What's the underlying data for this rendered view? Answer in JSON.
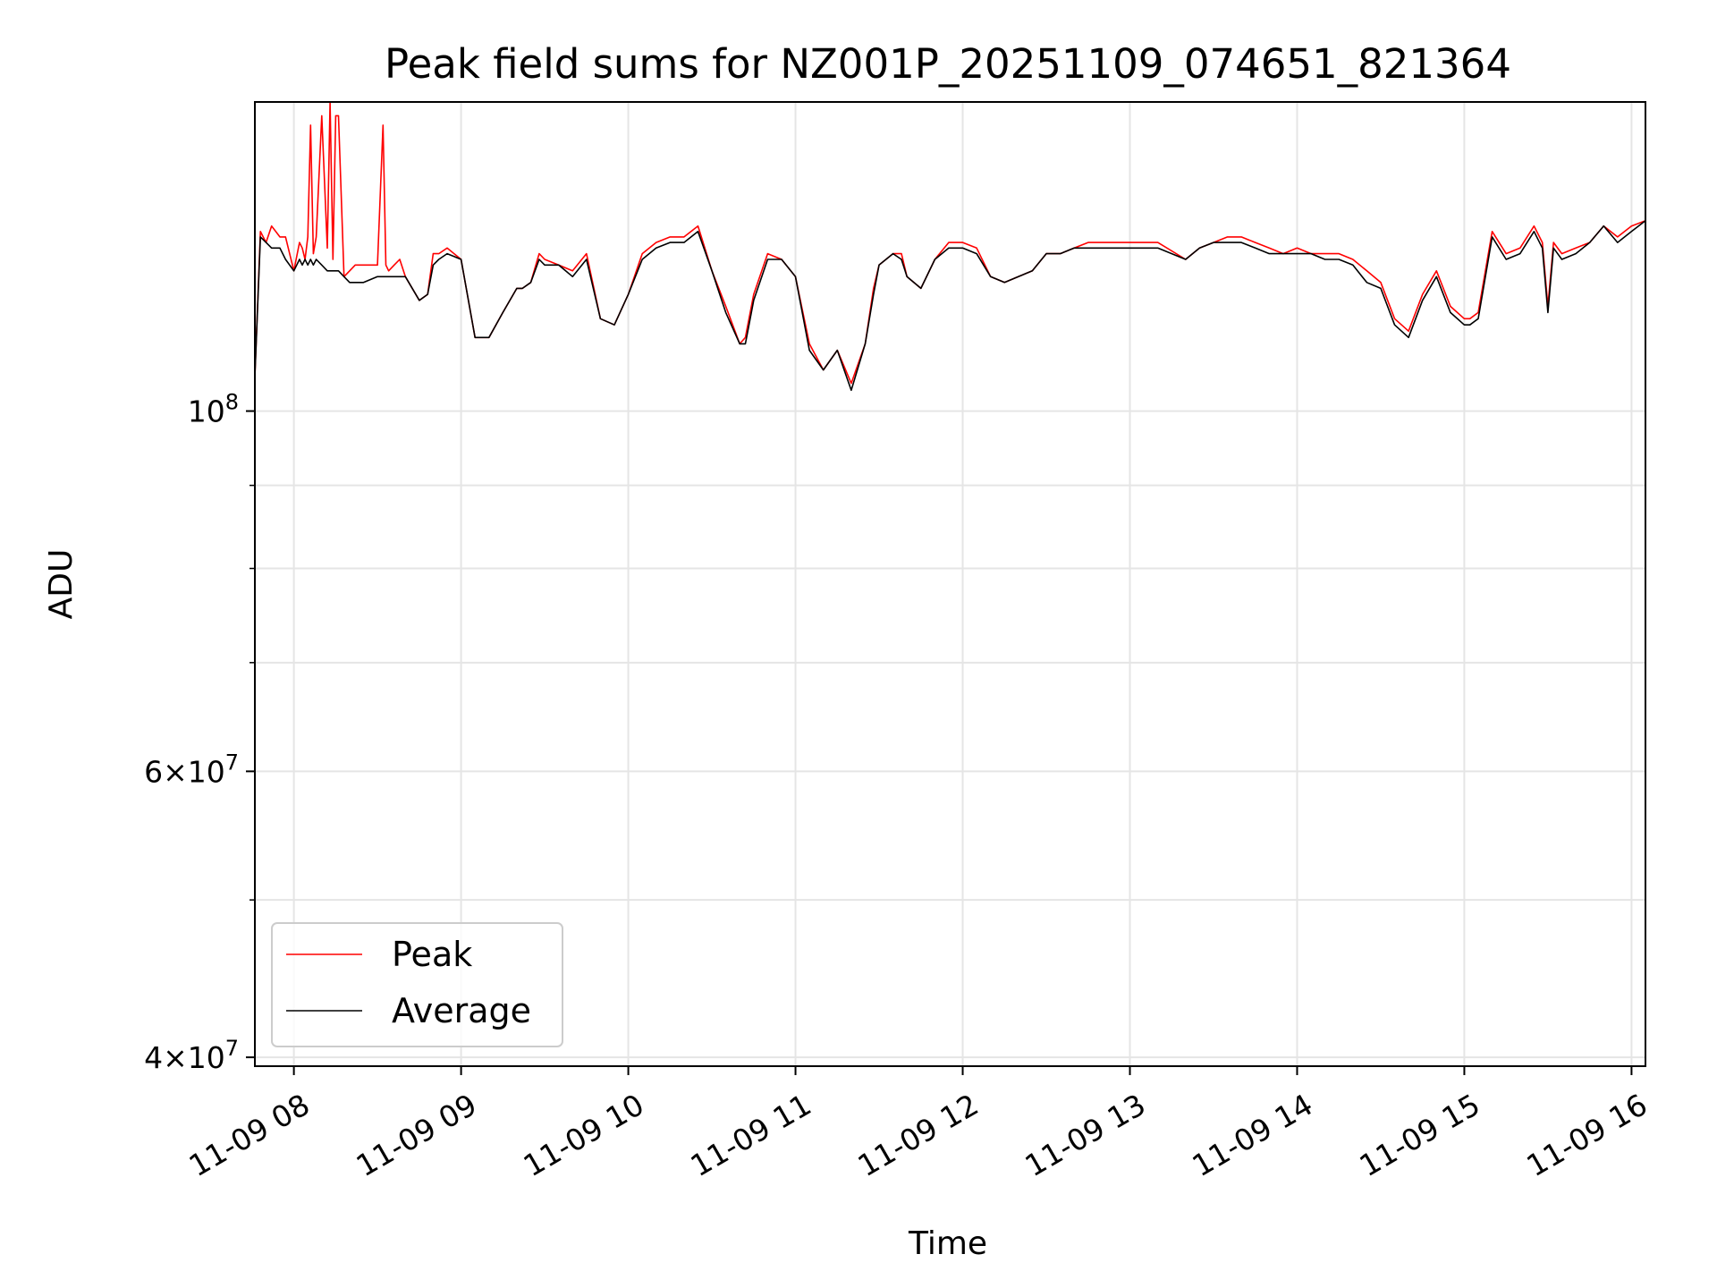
{
  "chart_data": {
    "type": "line",
    "title": "Peak field sums for NZ001P_20251109_074651_821364",
    "xlabel": "Time",
    "ylabel": "ADU",
    "y_scale": "log",
    "grid": true,
    "legend_position": "lower-left",
    "x_tick_labels": [
      "11-09 08",
      "11-09 09",
      "11-09 10",
      "11-09 11",
      "11-09 12",
      "11-09 13",
      "11-09 14",
      "11-09 15",
      "11-09 16"
    ],
    "x_range": [
      "11-09 07:46",
      "11-09 16:05"
    ],
    "y_range": [
      39500000,
      155000000
    ],
    "y_tick_labels": [
      {
        "value": 100000000,
        "mantissa": "",
        "base": "10",
        "exp": "8"
      },
      {
        "value": 60000000,
        "mantissa": "6",
        "base": "10",
        "exp": "7"
      },
      {
        "value": 40000000,
        "mantissa": "4",
        "base": "10",
        "exp": "7"
      }
    ],
    "y_minor_ticks": [
      50000000,
      70000000,
      80000000,
      90000000
    ],
    "series": [
      {
        "name": "Peak",
        "color": "#ff0000",
        "x": [
          "07:46",
          "07:48",
          "07:50",
          "07:52",
          "07:55",
          "07:57",
          "08:00",
          "08:02",
          "08:03",
          "08:04",
          "08:05",
          "08:06",
          "08:07",
          "08:08",
          "08:10",
          "08:12",
          "08:13",
          "08:14",
          "08:15",
          "08:16",
          "08:18",
          "08:20",
          "08:22",
          "08:25",
          "08:30",
          "08:32",
          "08:33",
          "08:34",
          "08:36",
          "08:38",
          "08:40",
          "08:45",
          "08:48",
          "08:50",
          "08:52",
          "08:55",
          "09:00",
          "09:05",
          "09:10",
          "09:15",
          "09:20",
          "09:22",
          "09:25",
          "09:28",
          "09:30",
          "09:35",
          "09:40",
          "09:45",
          "09:50",
          "09:55",
          "10:00",
          "10:05",
          "10:10",
          "10:15",
          "10:20",
          "10:25",
          "10:30",
          "10:35",
          "10:40",
          "10:42",
          "10:45",
          "10:50",
          "10:55",
          "11:00",
          "11:05",
          "11:10",
          "11:15",
          "11:20",
          "11:25",
          "11:28",
          "11:30",
          "11:35",
          "11:38",
          "11:40",
          "11:45",
          "11:50",
          "11:55",
          "12:00",
          "12:05",
          "12:10",
          "12:15",
          "12:20",
          "12:25",
          "12:30",
          "12:35",
          "12:40",
          "12:45",
          "12:50",
          "12:55",
          "13:00",
          "13:10",
          "13:20",
          "13:25",
          "13:30",
          "13:35",
          "13:40",
          "13:45",
          "13:50",
          "13:55",
          "14:00",
          "14:05",
          "14:10",
          "14:15",
          "14:20",
          "14:25",
          "14:30",
          "14:35",
          "14:40",
          "14:45",
          "14:50",
          "14:55",
          "15:00",
          "15:02",
          "15:05",
          "15:10",
          "15:15",
          "15:20",
          "15:25",
          "15:28",
          "15:30",
          "15:32",
          "15:35",
          "15:40",
          "15:45",
          "15:50",
          "15:55",
          "16:00",
          "16:05"
        ],
        "y": [
          105000000,
          129000000,
          127000000,
          130000000,
          128000000,
          128000000,
          122000000,
          127000000,
          126000000,
          124000000,
          128000000,
          150000000,
          125000000,
          128000000,
          152000000,
          126000000,
          155000000,
          124000000,
          152000000,
          152000000,
          121000000,
          122000000,
          123000000,
          123000000,
          123000000,
          150000000,
          123000000,
          122000000,
          123000000,
          124000000,
          121000000,
          117000000,
          118000000,
          125000000,
          125000000,
          126000000,
          124000000,
          111000000,
          111000000,
          115000000,
          119000000,
          119000000,
          120000000,
          125000000,
          124000000,
          123000000,
          122000000,
          125000000,
          114000000,
          113000000,
          118000000,
          125000000,
          127000000,
          128000000,
          128000000,
          130000000,
          122000000,
          116000000,
          110000000,
          111000000,
          118000000,
          125000000,
          124000000,
          121000000,
          110000000,
          106000000,
          109000000,
          104000000,
          110000000,
          119000000,
          123000000,
          125000000,
          125000000,
          121000000,
          119000000,
          124000000,
          127000000,
          127000000,
          126000000,
          121000000,
          120000000,
          121000000,
          122000000,
          125000000,
          125000000,
          126000000,
          127000000,
          127000000,
          127000000,
          127000000,
          127000000,
          124000000,
          126000000,
          127000000,
          128000000,
          128000000,
          127000000,
          126000000,
          125000000,
          126000000,
          125000000,
          125000000,
          125000000,
          124000000,
          122000000,
          120000000,
          114000000,
          112000000,
          118000000,
          122000000,
          116000000,
          114000000,
          114000000,
          115000000,
          129000000,
          125000000,
          126000000,
          130000000,
          127000000,
          116000000,
          127000000,
          125000000,
          126000000,
          127000000,
          130000000,
          128000000,
          130000000,
          131000000
        ]
      },
      {
        "name": "Average",
        "color": "#000000",
        "x": [
          "07:46",
          "07:48",
          "07:50",
          "07:52",
          "07:55",
          "07:57",
          "08:00",
          "08:02",
          "08:03",
          "08:04",
          "08:05",
          "08:06",
          "08:07",
          "08:08",
          "08:10",
          "08:12",
          "08:13",
          "08:14",
          "08:15",
          "08:16",
          "08:18",
          "08:20",
          "08:22",
          "08:25",
          "08:30",
          "08:32",
          "08:33",
          "08:34",
          "08:36",
          "08:38",
          "08:40",
          "08:45",
          "08:48",
          "08:50",
          "08:52",
          "08:55",
          "09:00",
          "09:05",
          "09:10",
          "09:15",
          "09:20",
          "09:22",
          "09:25",
          "09:28",
          "09:30",
          "09:35",
          "09:40",
          "09:45",
          "09:50",
          "09:55",
          "10:00",
          "10:05",
          "10:10",
          "10:15",
          "10:20",
          "10:25",
          "10:30",
          "10:35",
          "10:40",
          "10:42",
          "10:45",
          "10:50",
          "10:55",
          "11:00",
          "11:05",
          "11:10",
          "11:15",
          "11:20",
          "11:25",
          "11:28",
          "11:30",
          "11:35",
          "11:38",
          "11:40",
          "11:45",
          "11:50",
          "11:55",
          "12:00",
          "12:05",
          "12:10",
          "12:15",
          "12:20",
          "12:25",
          "12:30",
          "12:35",
          "12:40",
          "12:45",
          "12:50",
          "12:55",
          "13:00",
          "13:10",
          "13:20",
          "13:25",
          "13:30",
          "13:35",
          "13:40",
          "13:45",
          "13:50",
          "13:55",
          "14:00",
          "14:05",
          "14:10",
          "14:15",
          "14:20",
          "14:25",
          "14:30",
          "14:35",
          "14:40",
          "14:45",
          "14:50",
          "14:55",
          "15:00",
          "15:02",
          "15:05",
          "15:10",
          "15:15",
          "15:20",
          "15:25",
          "15:28",
          "15:30",
          "15:32",
          "15:35",
          "15:40",
          "15:45",
          "15:50",
          "15:55",
          "16:00",
          "16:05"
        ],
        "y": [
          105000000,
          128000000,
          127000000,
          126000000,
          126000000,
          124000000,
          122000000,
          124000000,
          123000000,
          124000000,
          123000000,
          124000000,
          123000000,
          124000000,
          123000000,
          122000000,
          122000000,
          122000000,
          122000000,
          122000000,
          121000000,
          120000000,
          120000000,
          120000000,
          121000000,
          121000000,
          121000000,
          121000000,
          121000000,
          121000000,
          121000000,
          117000000,
          118000000,
          123000000,
          124000000,
          125000000,
          124000000,
          111000000,
          111000000,
          115000000,
          119000000,
          119000000,
          120000000,
          124000000,
          123000000,
          123000000,
          121000000,
          124000000,
          114000000,
          113000000,
          118000000,
          124000000,
          126000000,
          127000000,
          127000000,
          129000000,
          122000000,
          115000000,
          110000000,
          110000000,
          117000000,
          124000000,
          124000000,
          121000000,
          109000000,
          106000000,
          109000000,
          103000000,
          110000000,
          118000000,
          123000000,
          125000000,
          124000000,
          121000000,
          119000000,
          124000000,
          126000000,
          126000000,
          125000000,
          121000000,
          120000000,
          121000000,
          122000000,
          125000000,
          125000000,
          126000000,
          126000000,
          126000000,
          126000000,
          126000000,
          126000000,
          124000000,
          126000000,
          127000000,
          127000000,
          127000000,
          126000000,
          125000000,
          125000000,
          125000000,
          125000000,
          124000000,
          124000000,
          123000000,
          120000000,
          119000000,
          113000000,
          111000000,
          117000000,
          121000000,
          115000000,
          113000000,
          113000000,
          114000000,
          128000000,
          124000000,
          125000000,
          129000000,
          126000000,
          115000000,
          126000000,
          124000000,
          125000000,
          127000000,
          130000000,
          127000000,
          129000000,
          131000000
        ]
      }
    ]
  }
}
